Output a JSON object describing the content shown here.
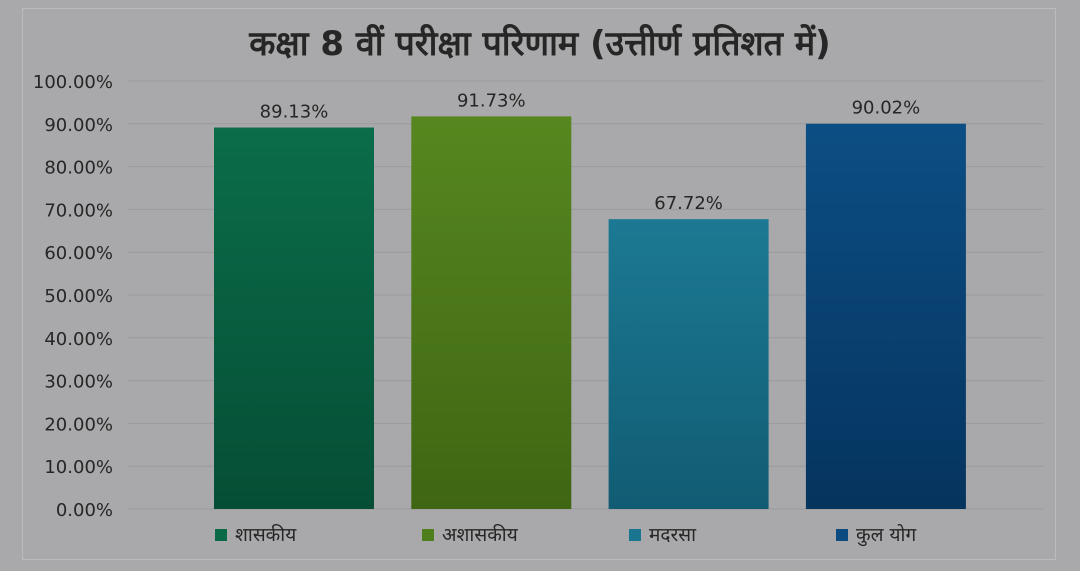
{
  "chart_data": {
    "type": "bar",
    "title": "कक्षा 8 वीं परीक्षा परिणाम (उत्तीर्ण प्रतिशत में)",
    "categories": [
      "शासकीय",
      "अशासकीय",
      "मदरसा",
      "कुल योग"
    ],
    "values": [
      89.13,
      91.73,
      67.72,
      90.02
    ],
    "value_labels": [
      "89.13%",
      "91.73%",
      "67.72%",
      "90.02%"
    ],
    "yticks": [
      "0.00%",
      "10.00%",
      "20.00%",
      "30.00%",
      "40.00%",
      "50.00%",
      "60.00%",
      "70.00%",
      "80.00%",
      "90.00%",
      "100.00%"
    ],
    "ylim": [
      0,
      100
    ],
    "grid": true,
    "legend_position": "bottom",
    "colors": [
      "#0a6a47",
      "#4f7f1c",
      "#1a7590",
      "#0b4b80"
    ],
    "xlabel": "",
    "ylabel": ""
  }
}
